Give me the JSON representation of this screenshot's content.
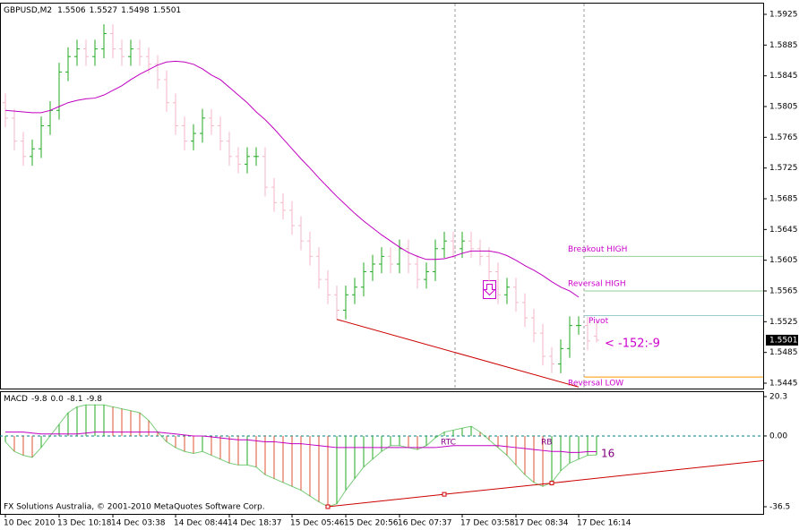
{
  "chart_data": [
    {
      "type": "ohlc",
      "title": "GBPUSD,M2",
      "header_values": [
        1.5506,
        1.5527,
        1.5498,
        1.5501
      ],
      "xlim": [
        -0.6,
        84.6
      ],
      "ylim": [
        1.5438,
        1.5939
      ],
      "yticks": [
        1.5925,
        1.5885,
        1.5845,
        1.5805,
        1.5765,
        1.5725,
        1.5685,
        1.5645,
        1.5605,
        1.5565,
        1.5525,
        1.5485,
        1.5445
      ],
      "up_color": "#22aa22",
      "down_color": "#f5b7c8",
      "open": [
        1.581,
        1.579,
        1.576,
        1.574,
        1.575,
        1.578,
        1.58,
        1.585,
        1.587,
        1.588,
        1.587,
        1.588,
        1.59,
        1.588,
        1.587,
        1.588,
        1.587,
        1.586,
        1.584,
        1.581,
        1.578,
        1.576,
        1.577,
        1.579,
        1.578,
        1.576,
        1.574,
        1.573,
        1.574,
        1.574,
        1.57,
        1.568,
        1.567,
        1.565,
        1.563,
        1.561,
        1.558,
        1.556,
        1.554,
        1.556,
        1.557,
        1.559,
        1.56,
        1.561,
        1.56,
        1.562,
        1.56,
        1.558,
        1.559,
        1.562,
        1.563,
        1.562,
        1.563,
        1.562,
        1.561,
        1.559,
        1.556,
        1.557,
        1.555,
        1.553,
        1.551,
        1.548,
        1.547,
        1.549,
        1.552,
        1.552,
        1.5506
      ],
      "high": [
        1.5822,
        1.5802,
        1.5772,
        1.5762,
        1.5792,
        1.5812,
        1.5862,
        1.5882,
        1.5892,
        1.5892,
        1.5892,
        1.5912,
        1.5912,
        1.5892,
        1.5892,
        1.5892,
        1.5882,
        1.5872,
        1.5852,
        1.5822,
        1.5792,
        1.5782,
        1.5802,
        1.5802,
        1.5792,
        1.5772,
        1.5752,
        1.5752,
        1.5752,
        1.5752,
        1.5712,
        1.5692,
        1.5682,
        1.5662,
        1.5642,
        1.5622,
        1.5592,
        1.5572,
        1.5572,
        1.5582,
        1.5602,
        1.5612,
        1.5622,
        1.5622,
        1.5632,
        1.5632,
        1.5612,
        1.5602,
        1.5632,
        1.5642,
        1.5642,
        1.5642,
        1.5642,
        1.5632,
        1.5622,
        1.5602,
        1.5582,
        1.5582,
        1.5562,
        1.5542,
        1.5522,
        1.5492,
        1.5502,
        1.5532,
        1.5532,
        1.5532,
        1.5527
      ],
      "low": [
        1.5778,
        1.5748,
        1.5728,
        1.5728,
        1.5738,
        1.5768,
        1.5788,
        1.5838,
        1.5858,
        1.5858,
        1.5858,
        1.5868,
        1.5868,
        1.5858,
        1.5858,
        1.5858,
        1.5848,
        1.5828,
        1.5798,
        1.5768,
        1.5748,
        1.5748,
        1.5758,
        1.5768,
        1.5748,
        1.5728,
        1.5718,
        1.5718,
        1.5728,
        1.5688,
        1.5668,
        1.5658,
        1.5638,
        1.5618,
        1.5598,
        1.5568,
        1.5548,
        1.5528,
        1.5528,
        1.5548,
        1.5558,
        1.5578,
        1.5588,
        1.5588,
        1.5588,
        1.5588,
        1.5568,
        1.5568,
        1.5578,
        1.5608,
        1.5608,
        1.5608,
        1.5608,
        1.5598,
        1.5578,
        1.5548,
        1.5548,
        1.5538,
        1.5518,
        1.5498,
        1.5468,
        1.5458,
        1.5458,
        1.5478,
        1.5508,
        1.5488,
        1.5498
      ],
      "close": [
        1.579,
        1.576,
        1.574,
        1.575,
        1.578,
        1.58,
        1.585,
        1.587,
        1.588,
        1.587,
        1.588,
        1.59,
        1.588,
        1.587,
        1.588,
        1.587,
        1.586,
        1.584,
        1.581,
        1.578,
        1.576,
        1.577,
        1.579,
        1.578,
        1.576,
        1.574,
        1.573,
        1.574,
        1.574,
        1.57,
        1.568,
        1.567,
        1.565,
        1.563,
        1.561,
        1.558,
        1.556,
        1.554,
        1.556,
        1.557,
        1.559,
        1.56,
        1.561,
        1.56,
        1.562,
        1.56,
        1.558,
        1.559,
        1.562,
        1.563,
        1.562,
        1.563,
        1.562,
        1.561,
        1.559,
        1.556,
        1.557,
        1.555,
        1.553,
        1.551,
        1.548,
        1.547,
        1.549,
        1.552,
        1.552,
        1.55,
        1.5501
      ],
      "moving_average": {
        "color": "#c000c0",
        "values": [
          1.58,
          1.5799,
          1.5798,
          1.5797,
          1.5797,
          1.58,
          1.5805,
          1.581,
          1.5813,
          1.5815,
          1.5816,
          1.582,
          1.5826,
          1.5832,
          1.584,
          1.5847,
          1.5853,
          1.5859,
          1.5863,
          1.5864,
          1.5863,
          1.586,
          1.5854,
          1.5846,
          1.584,
          1.583,
          1.582,
          1.581,
          1.5798,
          1.5788,
          1.5776,
          1.5763,
          1.575,
          1.5737,
          1.5725,
          1.5712,
          1.57,
          1.5688,
          1.5677,
          1.5666,
          1.5656,
          1.5647,
          1.5638,
          1.563,
          1.5622,
          1.5615,
          1.561,
          1.5606,
          1.5606,
          1.5607,
          1.561,
          1.5614,
          1.5617,
          1.5617,
          1.5617,
          1.5615,
          1.5611,
          1.5605,
          1.5598,
          1.5592,
          1.5585,
          1.5577,
          1.557,
          1.5565,
          1.5557,
          null,
          null
        ]
      },
      "current_price": 1.5501,
      "levels": [
        {
          "label": "Breakout HIGH",
          "value": 1.561,
          "color": "#99cc99"
        },
        {
          "label": "Reversal HIGH",
          "value": 1.5565,
          "color": "#99cc99"
        },
        {
          "label": "Pivot",
          "value": 1.5533,
          "color": "#99cccc"
        },
        {
          "label": "Reversal LOW",
          "value": 1.5453,
          "color": "#ff9900"
        }
      ],
      "trend_line": {
        "color": "#cc0000",
        "x": [
          37,
          64
        ],
        "y": [
          1.5528,
          1.544
        ]
      },
      "annotation": "< -152:-9"
    },
    {
      "type": "macd",
      "title": "MACD",
      "header_values": [
        -9.8,
        {
          "value": 0,
          "label": "0.0"
        },
        -8.1,
        -9.8
      ],
      "xlim": [
        -0.6,
        84.6
      ],
      "ylim": [
        -40.2,
        22.6
      ],
      "yticks": [
        20.3,
        {
          "value": 0,
          "label": "0.00"
        },
        -36.5
      ],
      "categories": [
        "10 Dec 2010",
        null,
        null,
        null,
        null,
        null,
        "13 Dec 10:18",
        null,
        null,
        null,
        null,
        null,
        "14 Dec 03:38",
        null,
        null,
        null,
        null,
        null,
        null,
        "14 Dec 08:44",
        null,
        null,
        null,
        null,
        null,
        "14 Dec 18:37",
        null,
        null,
        null,
        null,
        null,
        null,
        "15 Dec 05:46",
        null,
        null,
        null,
        null,
        null,
        "15 Dec 20:56",
        null,
        null,
        null,
        null,
        null,
        "16 Dec 07:37",
        null,
        null,
        null,
        null,
        null,
        null,
        "17 Dec 03:58",
        null,
        null,
        null,
        null,
        null,
        "17 Dec 08:34",
        null,
        null,
        null,
        null,
        null,
        null,
        "17 Dec 16:14",
        null,
        null
      ],
      "rising_color": "#22aa22",
      "falling_color": "#e05030",
      "values": [
        -3,
        -8,
        -10,
        -11,
        -6,
        0,
        6,
        12,
        15,
        16,
        16,
        16,
        15,
        14,
        13,
        12,
        8,
        2,
        -3,
        -6,
        -8,
        -9,
        -8,
        -10,
        -12,
        -14,
        -15,
        -15,
        -16,
        -20,
        -22,
        -24,
        -26,
        -28,
        -31,
        -34,
        -36.5,
        -35,
        -28,
        -22,
        -16,
        -12,
        -8,
        -5,
        -5,
        -6,
        -7,
        -5,
        -1,
        2,
        3,
        4,
        5,
        2,
        -2,
        -6,
        -10,
        -15,
        -20,
        -24,
        -26,
        -24,
        -18,
        -14,
        -12,
        -10,
        -9.8
      ],
      "signal": {
        "color": "#c000c0",
        "values": [
          2,
          2,
          2,
          1.5,
          1,
          1,
          1,
          1,
          1,
          1.5,
          2,
          2,
          2,
          2,
          2,
          2,
          2,
          2,
          1.5,
          1,
          0.5,
          0,
          0,
          -0.5,
          -1,
          -1.5,
          -2,
          -2,
          -2.5,
          -3,
          -3,
          -3.5,
          -4,
          -4,
          -4.5,
          -5,
          -5.5,
          -6,
          -6,
          -6,
          -6,
          -6,
          -6,
          -6,
          -6,
          -6,
          -6,
          -6,
          -6,
          -5.5,
          -5,
          -5,
          -5,
          -5,
          -5,
          -5,
          -5.5,
          -6,
          -6.5,
          -7,
          -7.5,
          -8,
          -8,
          -8.5,
          -8.5,
          -8.1,
          -8.1
        ]
      },
      "zero_line_color": "#008080",
      "trend_line": {
        "color": "#cc0000",
        "x": [
          36,
          49,
          61,
          84.6
        ],
        "y": [
          -36.5,
          -30.1,
          -24.3,
          -12.7
        ]
      },
      "annotations": [
        "RTC",
        "RB",
        "16"
      ],
      "footer": "FX Solutions Australia, © 2001-2010 MetaQuotes Software Corp."
    }
  ]
}
